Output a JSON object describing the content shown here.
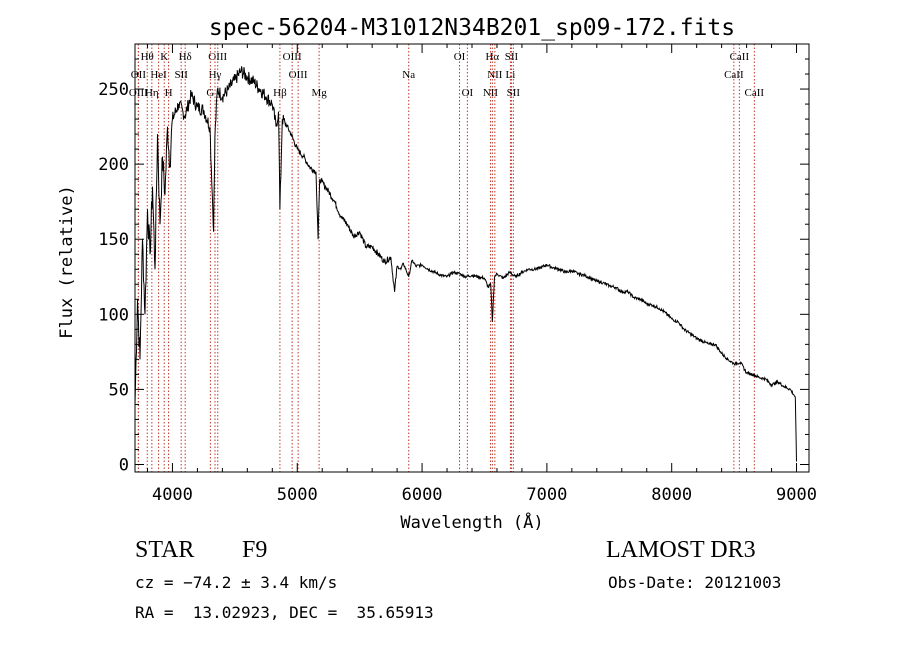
{
  "chart_data": {
    "type": "line",
    "title": "spec-56204-M31012N34B201_sp09-172.fits",
    "xlabel": "Wavelength (Å)",
    "ylabel": "Flux (relative)",
    "xlim": [
      3700,
      9100
    ],
    "ylim": [
      -5,
      280
    ],
    "x_ticks": [
      4000,
      5000,
      6000,
      7000,
      8000,
      9000
    ],
    "x_tick_labels": [
      "4000",
      "5000",
      "6000",
      "7000",
      "8000",
      "9000"
    ],
    "y_ticks": [
      0,
      50,
      100,
      150,
      200,
      250
    ],
    "y_tick_labels": [
      "0",
      "50",
      "100",
      "150",
      "200",
      "250"
    ],
    "grid": false,
    "series": [
      {
        "name": "flux",
        "x": [
          3700,
          3720,
          3740,
          3760,
          3780,
          3800,
          3820,
          3840,
          3860,
          3880,
          3900,
          3920,
          3940,
          3960,
          3980,
          4000,
          4050,
          4100,
          4150,
          4200,
          4250,
          4300,
          4330,
          4340,
          4360,
          4400,
          4450,
          4500,
          4550,
          4600,
          4650,
          4700,
          4750,
          4800,
          4830,
          4850,
          4861,
          4880,
          4920,
          4950,
          5000,
          5050,
          5100,
          5150,
          5167,
          5180,
          5200,
          5250,
          5300,
          5350,
          5400,
          5450,
          5500,
          5550,
          5600,
          5650,
          5700,
          5750,
          5780,
          5800,
          5830,
          5850,
          5893,
          5920,
          5950,
          6000,
          6050,
          6100,
          6150,
          6200,
          6250,
          6300,
          6350,
          6400,
          6450,
          6500,
          6530,
          6550,
          6563,
          6580,
          6600,
          6650,
          6700,
          6750,
          6800,
          6850,
          6900,
          6950,
          7000,
          7050,
          7100,
          7150,
          7200,
          7250,
          7300,
          7350,
          7400,
          7450,
          7500,
          7550,
          7600,
          7650,
          7700,
          7750,
          7800,
          7850,
          7900,
          7950,
          8000,
          8050,
          8100,
          8150,
          8200,
          8250,
          8300,
          8350,
          8400,
          8450,
          8500,
          8550,
          8600,
          8650,
          8700,
          8750,
          8800,
          8850,
          8900,
          8950,
          8990,
          9000
        ],
        "y": [
          40,
          110,
          70,
          150,
          100,
          170,
          140,
          185,
          130,
          220,
          160,
          205,
          180,
          225,
          200,
          230,
          240,
          232,
          246,
          238,
          236,
          225,
          155,
          218,
          250,
          245,
          250,
          256,
          262,
          258,
          255,
          250,
          245,
          240,
          225,
          235,
          170,
          230,
          225,
          220,
          210,
          205,
          198,
          195,
          150,
          190,
          188,
          182,
          175,
          165,
          160,
          152,
          155,
          145,
          145,
          140,
          135,
          138,
          115,
          132,
          130,
          134,
          125,
          136,
          132,
          133,
          130,
          128,
          126,
          125,
          128,
          127,
          125,
          126,
          125,
          124,
          118,
          120,
          95,
          125,
          127,
          124,
          128,
          125,
          128,
          130,
          130,
          131,
          133,
          131,
          130,
          128,
          129,
          127,
          126,
          124,
          122,
          121,
          119,
          118,
          115,
          115,
          111,
          110,
          107,
          106,
          104,
          101,
          97,
          95,
          90,
          87,
          84,
          82,
          80,
          80,
          74,
          70,
          67,
          68,
          61,
          60,
          58,
          57,
          53,
          55,
          52,
          50,
          45,
          2
        ]
      }
    ],
    "line_markers": [
      {
        "name": "Hθ",
        "wavelength": 3798,
        "row": 0
      },
      {
        "name": "K",
        "wavelength": 3934,
        "row": 0
      },
      {
        "name": "Hδ",
        "wavelength": 4102,
        "row": 0
      },
      {
        "name": "OIII",
        "wavelength": 4363,
        "row": 0
      },
      {
        "name": "OIII",
        "wavelength": 4959,
        "row": 0
      },
      {
        "name": "OI",
        "wavelength": 6300,
        "row": 0
      },
      {
        "name": "Hα",
        "wavelength": 6563,
        "row": 0
      },
      {
        "name": "SII",
        "wavelength": 6716,
        "row": 0
      },
      {
        "name": "CaII",
        "wavelength": 8542,
        "row": 0
      },
      {
        "name": "OII",
        "wavelength": 3727,
        "row": 1
      },
      {
        "name": "HeI",
        "wavelength": 3889,
        "row": 1
      },
      {
        "name": "SII",
        "wavelength": 4070,
        "row": 1
      },
      {
        "name": "Hγ",
        "wavelength": 4341,
        "row": 1
      },
      {
        "name": "OIII",
        "wavelength": 5007,
        "row": 1
      },
      {
        "name": "Na",
        "wavelength": 5893,
        "row": 1
      },
      {
        "name": "NII",
        "wavelength": 6583,
        "row": 1
      },
      {
        "name": "Li",
        "wavelength": 6708,
        "row": 1
      },
      {
        "name": "CaII",
        "wavelength": 8498,
        "row": 1
      },
      {
        "name": "OIII",
        "wavelength": 3727,
        "row": 2
      },
      {
        "name": "Hη",
        "wavelength": 3835,
        "row": 2
      },
      {
        "name": "H",
        "wavelength": 3969,
        "row": 2
      },
      {
        "name": "G",
        "wavelength": 4304,
        "row": 2
      },
      {
        "name": "Hβ",
        "wavelength": 4861,
        "row": 2
      },
      {
        "name": "Mg",
        "wavelength": 5175,
        "row": 2
      },
      {
        "name": "OI",
        "wavelength": 6363,
        "row": 2
      },
      {
        "name": "NII",
        "wavelength": 6548,
        "row": 2
      },
      {
        "name": "SII",
        "wavelength": 6731,
        "row": 2
      },
      {
        "name": "CaII",
        "wavelength": 8662,
        "row": 2
      }
    ]
  },
  "info": {
    "class": "STAR",
    "subclass": "F9",
    "survey": "LAMOST DR3",
    "cz": "cz = −74.2 ± 3.4 km/s",
    "obs_date": "Obs-Date: 20121003",
    "coords": "RA =  13.02923, DEC =  35.65913"
  }
}
